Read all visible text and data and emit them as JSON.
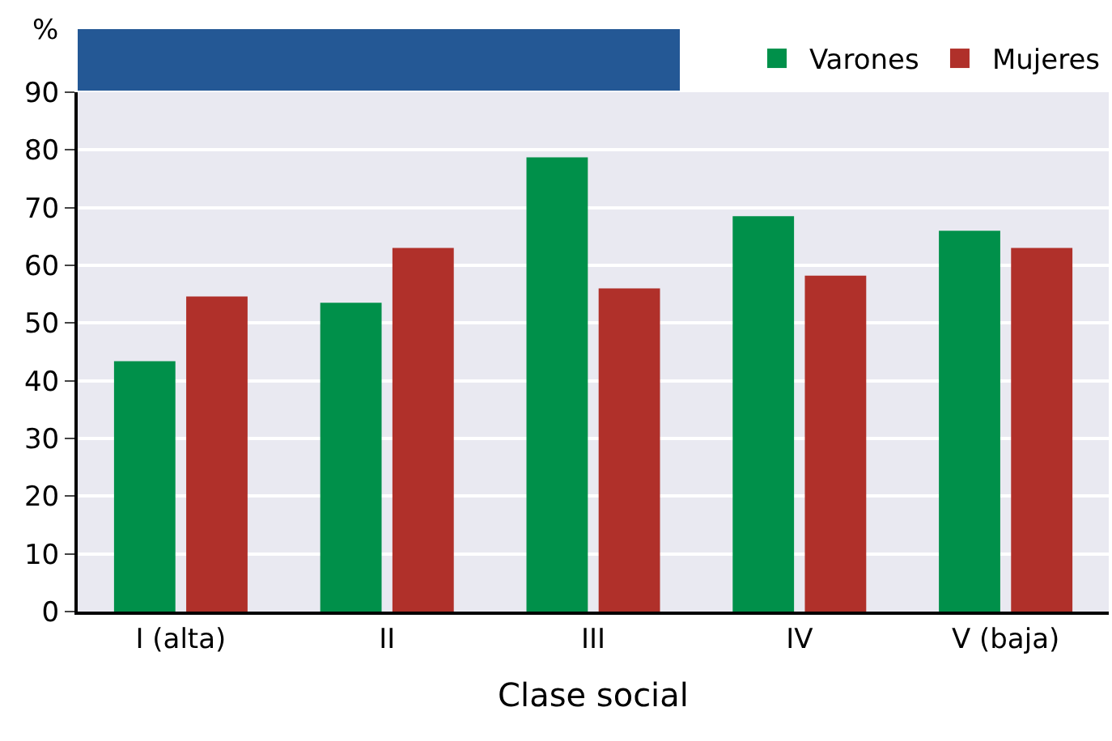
{
  "chart_data": {
    "type": "bar",
    "xlabel": "Clase social",
    "ylabel": "%",
    "categories": [
      "I (alta)",
      "II",
      "III",
      "IV",
      "V (baja)"
    ],
    "series": [
      {
        "name": "Varones",
        "color": "#00904a",
        "values": [
          43.4,
          53.5,
          78.7,
          68.5,
          66
        ]
      },
      {
        "name": "Mujeres",
        "color": "#b0302a",
        "values": [
          54.6,
          63,
          56,
          58.2,
          63
        ]
      }
    ],
    "ylim": [
      0,
      90
    ],
    "yticks": [
      0,
      10,
      20,
      30,
      40,
      50,
      60,
      70,
      80,
      90
    ],
    "grid": "y",
    "legend": "top right"
  }
}
